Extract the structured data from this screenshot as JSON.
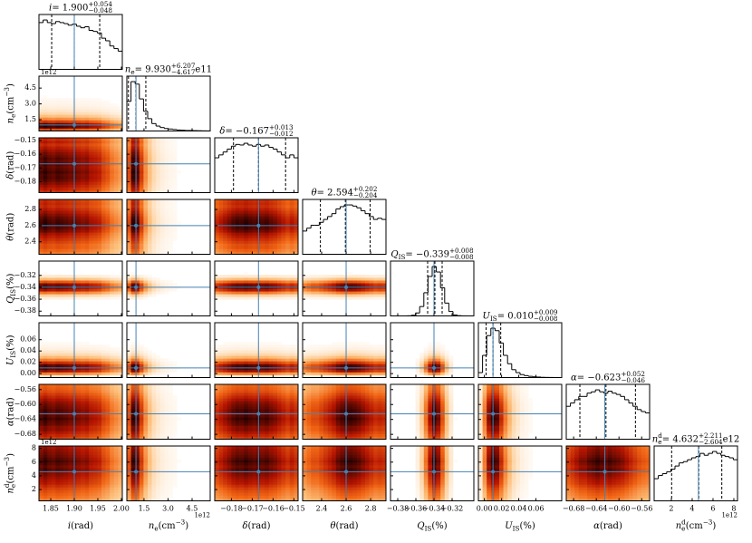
{
  "chart_data": {
    "type": "corner",
    "truth_color": "#4682b4",
    "hist_color": "#000000",
    "params": [
      {
        "label": [
          [
            "i",
            "i"
          ],
          [
            " (rad)",
            ""
          ]
        ],
        "title": [
          [
            "i",
            "i"
          ],
          [
            " = 1.900",
            ""
          ],
          [
            "+0.054",
            "sup"
          ],
          [
            "−0.048",
            "sub"
          ]
        ],
        "lim": [
          1.825,
          2.002
        ],
        "ticks": [
          1.85,
          {
            "value": 1.9,
            "label": "1.90"
          },
          1.95,
          {
            "value": 2,
            "label": "2.00"
          }
        ],
        "hist": [
          9,
          9.5,
          9,
          8.8,
          9.2,
          9,
          8.8,
          8.5,
          8.7,
          8.3,
          8,
          8.2,
          7.5,
          7.3,
          7,
          6,
          5.5,
          4.5,
          4,
          3.5
        ],
        "quantiles": [
          1.852,
          1.9,
          1.954
        ],
        "truth": 1.9
      },
      {
        "label": [
          [
            "n",
            "i"
          ],
          [
            "e",
            "sub"
          ],
          [
            "  (cm",
            ""
          ],
          [
            "−3",
            "sup"
          ],
          [
            ")",
            ""
          ]
        ],
        "title": [
          [
            "n",
            "i"
          ],
          [
            "e",
            "sub"
          ],
          [
            " = 9.930",
            ""
          ],
          [
            "+6.207",
            "sup"
          ],
          [
            "−4.617",
            "sub"
          ],
          [
            " e11",
            ""
          ]
        ],
        "lim": [
          0.43,
          5.63
        ],
        "ticks": [
          1.5,
          {
            "value": 3,
            "label": "3.0"
          },
          4.5
        ],
        "offset": "1e12",
        "hist": [
          60,
          100,
          95,
          65,
          40,
          25,
          15,
          10,
          7,
          5,
          4,
          3,
          2,
          1.5,
          1,
          1,
          0.7,
          0.5,
          0.3,
          0.2
        ],
        "quantiles": [
          0.531,
          0.993,
          1.614
        ],
        "truth": 1.0
      },
      {
        "label": [
          [
            "δ",
            "i"
          ],
          [
            " (rad)",
            ""
          ]
        ],
        "title": [
          [
            "δ",
            "i"
          ],
          [
            " = −0.167",
            ""
          ],
          [
            "+0.013",
            "sup"
          ],
          [
            "−0.012",
            "sub"
          ]
        ],
        "lim": [
          -0.188,
          -0.148
        ],
        "ticks": [
          {
            "value": -0.18,
            "label": "−0.18"
          },
          {
            "value": -0.17,
            "label": "−0.17"
          },
          {
            "value": -0.16,
            "label": "−0.16"
          },
          {
            "value": -0.15,
            "label": "−0.15"
          }
        ],
        "hist": [
          6,
          6.5,
          7,
          7.5,
          8,
          8.3,
          8.2,
          8.5,
          8.2,
          8,
          8.3,
          8,
          8.2,
          7.8,
          7.5,
          7,
          6.5,
          6,
          6.5,
          6
        ],
        "quantiles": [
          -0.179,
          -0.167,
          -0.154
        ],
        "truth": -0.167
      },
      {
        "label": [
          [
            "θ",
            "i"
          ],
          [
            " (rad)",
            ""
          ]
        ],
        "title": [
          [
            "θ",
            "i"
          ],
          [
            " = 2.594",
            ""
          ],
          [
            "+0.202",
            "sup"
          ],
          [
            "−0.204",
            "sub"
          ]
        ],
        "lim": [
          2.245,
          2.925
        ],
        "ticks": [
          2.4,
          2.6,
          2.8
        ],
        "hist": [
          4,
          4.5,
          5,
          5,
          5.5,
          6,
          6.5,
          7,
          7.8,
          8.2,
          8.5,
          8.5,
          8.3,
          8,
          7.5,
          7,
          6.5,
          6,
          6.2,
          6
        ],
        "quantiles": [
          2.39,
          2.594,
          2.796
        ],
        "truth": 2.6
      },
      {
        "label": [
          [
            "Q",
            "i"
          ],
          [
            "IS",
            "sub"
          ],
          [
            " (%)",
            ""
          ]
        ],
        "title": [
          [
            "Q",
            "i"
          ],
          [
            "IS",
            "sub"
          ],
          [
            " = −0.339",
            ""
          ],
          [
            "+0.008",
            "sup"
          ],
          [
            "−0.008",
            "sub"
          ]
        ],
        "lim": [
          -0.388,
          -0.296
        ],
        "ticks": [
          {
            "value": -0.38,
            "label": "−0.38"
          },
          {
            "value": -0.36,
            "label": "−0.36"
          },
          {
            "value": -0.34,
            "label": "−0.34"
          },
          {
            "value": -0.32,
            "label": "−0.32"
          }
        ],
        "hist": [
          0,
          0,
          0,
          0,
          0.3,
          1.3,
          6,
          19,
          47,
          80,
          100,
          89,
          57,
          26,
          9,
          2,
          0.5,
          0.1,
          0,
          0
        ],
        "quantiles": [
          -0.347,
          -0.339,
          -0.331
        ],
        "truth": -0.34
      },
      {
        "label": [
          [
            "U",
            "i"
          ],
          [
            "IS",
            "sub"
          ],
          [
            " (%)",
            ""
          ]
        ],
        "title": [
          [
            "U",
            "i"
          ],
          [
            "IS",
            "sub"
          ],
          [
            " = 0.010",
            ""
          ],
          [
            "+0.009",
            "sup"
          ],
          [
            "−0.008",
            "sub"
          ]
        ],
        "lim": [
          -0.007,
          0.09
        ],
        "ticks": [
          {
            "value": 0,
            "label": "0.00"
          },
          0.02,
          0.04,
          0.06
        ],
        "hist": [
          10,
          45,
          85,
          100,
          95,
          70,
          45,
          28,
          16,
          10,
          6,
          4,
          2.5,
          1.5,
          1,
          0.5,
          0.3,
          0.2,
          0.1,
          0
        ],
        "quantiles": [
          0.002,
          0.01,
          0.019
        ],
        "truth": 0.01
      },
      {
        "label": [
          [
            "α",
            "i"
          ],
          [
            " (rad)",
            ""
          ]
        ],
        "title": [
          [
            "α",
            "i"
          ],
          [
            " = −0.623",
            ""
          ],
          [
            "+0.052",
            "sup"
          ],
          [
            "−0.046",
            "sub"
          ]
        ],
        "lim": [
          -0.693,
          -0.546
        ],
        "ticks": [
          {
            "value": -0.68,
            "label": "−0.68"
          },
          {
            "value": -0.64,
            "label": "−0.64"
          },
          {
            "value": -0.6,
            "label": "−0.60"
          },
          {
            "value": -0.56,
            "label": "−0.56"
          }
        ],
        "hist": [
          5,
          5.5,
          6,
          6.5,
          6.5,
          7,
          7.2,
          7.5,
          7.2,
          7,
          7.3,
          7,
          6.8,
          6.5,
          6,
          5.5,
          5,
          4.5,
          4.2,
          4
        ],
        "quantiles": [
          -0.669,
          -0.623,
          -0.571
        ],
        "truth": -0.625
      },
      {
        "label": [
          [
            "n",
            "i"
          ],
          [
            "d",
            "sup"
          ],
          [
            "e",
            "sub"
          ],
          [
            "  (cm",
            ""
          ],
          [
            "−3",
            "sup"
          ],
          [
            ")",
            ""
          ]
        ],
        "title": [
          [
            "n",
            "i"
          ],
          [
            "d",
            "sup"
          ],
          [
            "e",
            "sub"
          ],
          [
            " = 4.632",
            ""
          ],
          [
            "+2.211",
            "sup"
          ],
          [
            "−2.604",
            "sub"
          ],
          [
            " e12",
            ""
          ]
        ],
        "lim": [
          0.35,
          8.35
        ],
        "ticks": [
          2,
          4,
          6,
          8
        ],
        "offset": "1e12",
        "hist": [
          3.5,
          4,
          4.3,
          4.6,
          5,
          5.5,
          6,
          6.2,
          6.5,
          6.8,
          7,
          7.5,
          7.2,
          7.5,
          7.8,
          7.5,
          7.2,
          7,
          6.8,
          6.5
        ],
        "quantiles": [
          2.028,
          4.632,
          6.843
        ],
        "truth": 4.6
      }
    ]
  }
}
